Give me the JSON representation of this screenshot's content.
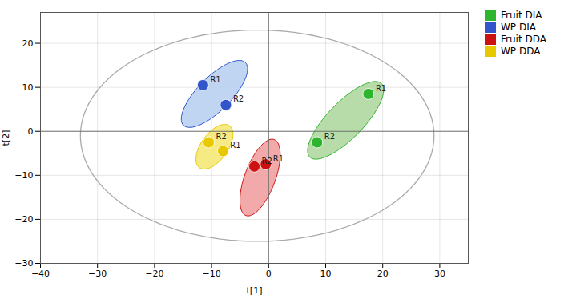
{
  "chart_data": {
    "type": "scatter",
    "xlabel": "t[1]",
    "ylabel": "t[2]",
    "xlim": [
      -40,
      35
    ],
    "ylim": [
      -30,
      27
    ],
    "xticks": [
      -40,
      -30,
      -20,
      -10,
      0,
      10,
      20,
      30
    ],
    "yticks": [
      -30,
      -20,
      -10,
      0,
      10,
      20
    ],
    "grid": true,
    "legend": "right",
    "rules": {
      "x": [
        0
      ],
      "y": [
        0
      ]
    },
    "ellipse": {
      "cx": -2,
      "cy": -1,
      "width": 62,
      "height": 48,
      "angle": 0
    },
    "series": [
      {
        "name": "Fruit DIA",
        "color": "#2db52d",
        "x": [
          17.5,
          8.5
        ],
        "y": [
          8.5,
          -2.5
        ],
        "labels": [
          "R1",
          "R2"
        ],
        "ellipse": {
          "cx": 13.5,
          "cy": 2.5,
          "width": 7,
          "height": 21,
          "angle": -35,
          "color": "#b0d8a0"
        }
      },
      {
        "name": "WP DIA",
        "color": "#3355cc",
        "x": [
          -11.5,
          -7.5
        ],
        "y": [
          10.5,
          6.0
        ],
        "labels": [
          "R1",
          "R2"
        ],
        "ellipse": {
          "cx": -9.5,
          "cy": 8.5,
          "width": 6.5,
          "height": 18,
          "angle": -35,
          "color": "#b8d0f0"
        }
      },
      {
        "name": "Fruit DDA",
        "color": "#cc1111",
        "x": [
          -0.5,
          -2.5
        ],
        "y": [
          -7.5,
          -8.0
        ],
        "labels": [
          "R1",
          "R2"
        ],
        "ellipse": {
          "cx": -1.5,
          "cy": -10.5,
          "width": 5.5,
          "height": 18,
          "angle": -15,
          "color": "#f0a0a0"
        }
      },
      {
        "name": "WP DDA",
        "color": "#e8c800",
        "x": [
          -8.0,
          -10.5
        ],
        "y": [
          -4.5,
          -2.5
        ],
        "labels": [
          "R1",
          "R2"
        ],
        "ellipse": {
          "cx": -9.5,
          "cy": -3.5,
          "width": 5,
          "height": 11,
          "angle": -25,
          "color": "#f5e878"
        }
      }
    ]
  }
}
